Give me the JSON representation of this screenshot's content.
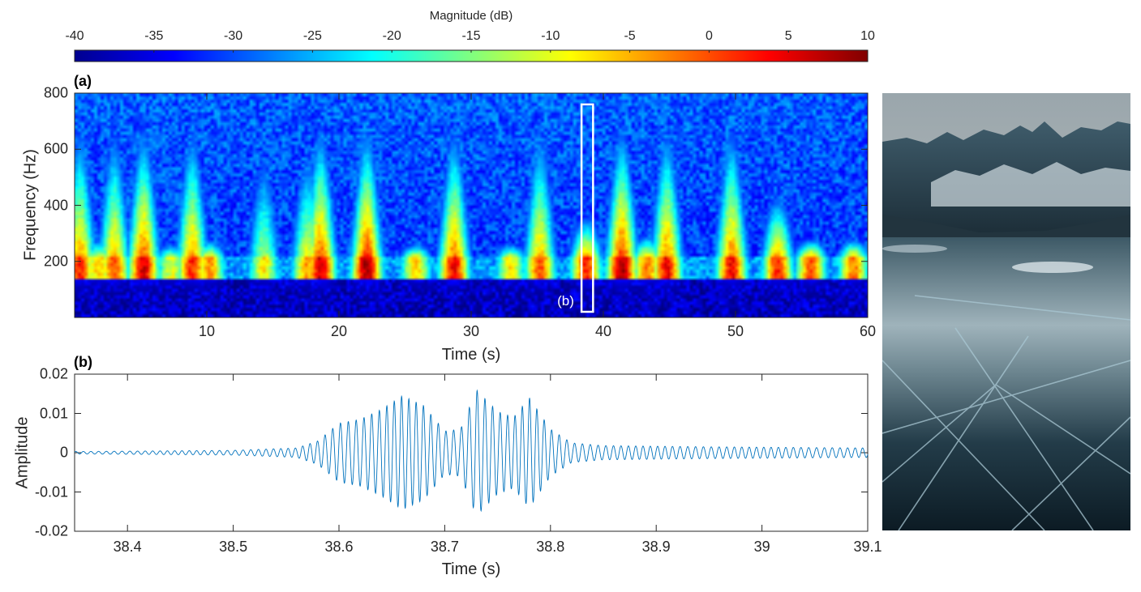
{
  "colorbar": {
    "label": "Magnitude (dB)",
    "min": -40,
    "max": 10,
    "ticks": [
      "-40",
      "-35",
      "-30",
      "-25",
      "-20",
      "-15",
      "-10",
      "-5",
      "0",
      "5",
      "10"
    ],
    "colormap": "jet"
  },
  "chart_data": [
    {
      "type": "heatmap",
      "panel_label": "(a)",
      "xlabel": "Time (s)",
      "ylabel": "Frequency (Hz)",
      "xlim": [
        0,
        60
      ],
      "ylim": [
        0,
        800
      ],
      "xticks": [
        10,
        20,
        30,
        40,
        50,
        60
      ],
      "yticks": [
        200,
        400,
        600,
        800
      ],
      "x_tick_labels": [
        "10",
        "20",
        "30",
        "40",
        "50",
        "60"
      ],
      "y_tick_labels": [
        "200",
        "400",
        "600",
        "800"
      ],
      "dominant_band_hz": [
        140,
        220
      ],
      "events": [
        {
          "t": 0.4,
          "peak_db": 2,
          "top_hz": 800
        },
        {
          "t": 1.8,
          "peak_db": -6,
          "top_hz": 300
        },
        {
          "t": 3.0,
          "peak_db": 0,
          "top_hz": 800
        },
        {
          "t": 5.2,
          "peak_db": 6,
          "top_hz": 800
        },
        {
          "t": 7.3,
          "peak_db": -10,
          "top_hz": 260
        },
        {
          "t": 8.9,
          "peak_db": 2,
          "top_hz": 800
        },
        {
          "t": 10.2,
          "peak_db": -4,
          "top_hz": 300
        },
        {
          "t": 14.3,
          "peak_db": -8,
          "top_hz": 700
        },
        {
          "t": 17.6,
          "peak_db": -4,
          "top_hz": 700
        },
        {
          "t": 18.6,
          "peak_db": 6,
          "top_hz": 800
        },
        {
          "t": 22.1,
          "peak_db": 8,
          "top_hz": 800
        },
        {
          "t": 25.8,
          "peak_db": -6,
          "top_hz": 280
        },
        {
          "t": 28.7,
          "peak_db": 4,
          "top_hz": 800
        },
        {
          "t": 33.0,
          "peak_db": -8,
          "top_hz": 260
        },
        {
          "t": 35.2,
          "peak_db": 0,
          "top_hz": 800
        },
        {
          "t": 38.7,
          "peak_db": 2,
          "top_hz": 400
        },
        {
          "t": 41.4,
          "peak_db": 8,
          "top_hz": 800
        },
        {
          "t": 43.3,
          "peak_db": -2,
          "top_hz": 320
        },
        {
          "t": 44.8,
          "peak_db": 4,
          "top_hz": 800
        },
        {
          "t": 49.7,
          "peak_db": 4,
          "top_hz": 800
        },
        {
          "t": 53.2,
          "peak_db": 2,
          "top_hz": 500
        },
        {
          "t": 55.7,
          "peak_db": 0,
          "top_hz": 300
        },
        {
          "t": 58.9,
          "peak_db": -2,
          "top_hz": 300
        }
      ],
      "highlight_box": {
        "label": "(b)",
        "t_range": [
          38.35,
          39.1
        ],
        "f_range": [
          0,
          780
        ]
      }
    },
    {
      "type": "line",
      "panel_label": "(b)",
      "xlabel": "Time (s)",
      "ylabel": "Amplitude",
      "xlim": [
        38.35,
        39.1
      ],
      "ylim": [
        -0.02,
        0.02
      ],
      "xticks": [
        38.4,
        38.5,
        38.6,
        38.7,
        38.8,
        38.9,
        39,
        39.1
      ],
      "yticks": [
        -0.02,
        -0.01,
        0,
        0.01,
        0.02
      ],
      "x_tick_labels": [
        "38.4",
        "38.5",
        "38.6",
        "38.7",
        "38.8",
        "38.9",
        "39",
        "39.1"
      ],
      "y_tick_labels": [
        "-0.02",
        "-0.01",
        "0",
        "0.01",
        "0.02"
      ],
      "signal": {
        "carrier_hz": 140,
        "envelope": [
          {
            "t": 38.35,
            "a": 0.0003
          },
          {
            "t": 38.5,
            "a": 0.0006
          },
          {
            "t": 38.56,
            "a": 0.0012
          },
          {
            "t": 38.58,
            "a": 0.003
          },
          {
            "t": 38.6,
            "a": 0.0075
          },
          {
            "t": 38.62,
            "a": 0.0085
          },
          {
            "t": 38.64,
            "a": 0.011
          },
          {
            "t": 38.66,
            "a": 0.0145
          },
          {
            "t": 38.68,
            "a": 0.012
          },
          {
            "t": 38.7,
            "a": 0.0055
          },
          {
            "t": 38.715,
            "a": 0.006
          },
          {
            "t": 38.73,
            "a": 0.016
          },
          {
            "t": 38.75,
            "a": 0.0105
          },
          {
            "t": 38.765,
            "a": 0.009
          },
          {
            "t": 38.78,
            "a": 0.014
          },
          {
            "t": 38.8,
            "a": 0.006
          },
          {
            "t": 38.82,
            "a": 0.0025
          },
          {
            "t": 38.85,
            "a": 0.0018
          },
          {
            "t": 38.95,
            "a": 0.0015
          },
          {
            "t": 39.1,
            "a": 0.0012
          }
        ]
      },
      "line_color": "#0072bd"
    }
  ]
}
